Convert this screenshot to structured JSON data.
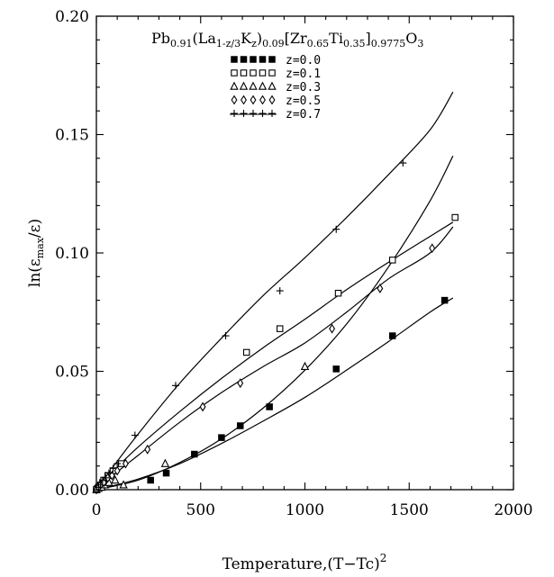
{
  "chart_data": {
    "type": "scatter",
    "title": "Pb0.91(La1-z/3Kz)0.09[Zr0.65Ti0.35]0.9775O3",
    "title_parts": [
      {
        "t": "Pb",
        "s": "n"
      },
      {
        "t": "0.91",
        "s": "sub"
      },
      {
        "t": "(La",
        "s": "n"
      },
      {
        "t": "1-z/3",
        "s": "sub"
      },
      {
        "t": "K",
        "s": "n"
      },
      {
        "t": "z",
        "s": "sub"
      },
      {
        "t": ")",
        "s": "n"
      },
      {
        "t": "0.09",
        "s": "sub"
      },
      {
        "t": "[Zr",
        "s": "n"
      },
      {
        "t": "0.65",
        "s": "sub"
      },
      {
        "t": "Ti",
        "s": "n"
      },
      {
        "t": "0.35",
        "s": "sub"
      },
      {
        "t": "]",
        "s": "n"
      },
      {
        "t": "0.9775",
        "s": "sub"
      },
      {
        "t": "O",
        "s": "n"
      },
      {
        "t": "3",
        "s": "sub"
      }
    ],
    "xlabel": "Temperature,(T−Tc)",
    "xlabel_sup": "2",
    "ylabel_prefix": "ln(ε",
    "ylabel_sub": "max",
    "ylabel_suffix": "/ε)",
    "xlim": [
      0,
      2000
    ],
    "ylim": [
      0,
      0.2
    ],
    "xticks": [
      0,
      500,
      1000,
      1500,
      2000
    ],
    "xtick_labels": [
      "0",
      "500",
      "1000",
      "1500",
      "2000"
    ],
    "yticks": [
      0,
      0.05,
      0.1,
      0.15,
      0.2
    ],
    "ytick_labels": [
      "0.00",
      "0.05",
      "0.10",
      "0.15",
      "0.20"
    ],
    "grid": false,
    "legend_position": "top-right",
    "series": [
      {
        "name": "z=0.0",
        "marker": "filled-square",
        "points": [
          [
            0,
            0
          ],
          [
            5,
            0.0005
          ],
          [
            10,
            0.001
          ],
          [
            20,
            0.002
          ],
          [
            30,
            0.003
          ],
          [
            45,
            0.004
          ],
          [
            260,
            0.004
          ],
          [
            335,
            0.007
          ],
          [
            470,
            0.015
          ],
          [
            600,
            0.022
          ],
          [
            690,
            0.027
          ],
          [
            830,
            0.035
          ],
          [
            1150,
            0.051
          ],
          [
            1420,
            0.065
          ],
          [
            1670,
            0.08
          ]
        ],
        "curve": [
          [
            0,
            0
          ],
          [
            200,
            0.0045
          ],
          [
            400,
            0.011
          ],
          [
            600,
            0.0195
          ],
          [
            800,
            0.029
          ],
          [
            1000,
            0.039
          ],
          [
            1200,
            0.0505
          ],
          [
            1400,
            0.0625
          ],
          [
            1600,
            0.075
          ],
          [
            1710,
            0.081
          ]
        ]
      },
      {
        "name": "z=0.1",
        "marker": "open-square",
        "points": [
          [
            0,
            0
          ],
          [
            10,
            0.001
          ],
          [
            20,
            0.002
          ],
          [
            35,
            0.004
          ],
          [
            55,
            0.006
          ],
          [
            80,
            0.008
          ],
          [
            120,
            0.011
          ],
          [
            720,
            0.058
          ],
          [
            880,
            0.068
          ],
          [
            1160,
            0.083
          ],
          [
            1420,
            0.097
          ],
          [
            1720,
            0.115
          ]
        ],
        "curve": [
          [
            0,
            0
          ],
          [
            100,
            0.0095
          ],
          [
            200,
            0.018
          ],
          [
            400,
            0.033
          ],
          [
            600,
            0.047
          ],
          [
            800,
            0.06
          ],
          [
            1000,
            0.072
          ],
          [
            1200,
            0.0845
          ],
          [
            1400,
            0.096
          ],
          [
            1600,
            0.107
          ],
          [
            1710,
            0.113
          ]
        ]
      },
      {
        "name": "z=0.3",
        "marker": "open-triangle",
        "points": [
          [
            0,
            0
          ],
          [
            10,
            0.0005
          ],
          [
            25,
            0.001
          ],
          [
            40,
            0.002
          ],
          [
            60,
            0.003
          ],
          [
            90,
            0.004
          ],
          [
            130,
            0.002
          ],
          [
            330,
            0.011
          ],
          [
            1000,
            0.052
          ]
        ],
        "curve": [
          [
            0,
            0
          ],
          [
            200,
            0.004
          ],
          [
            400,
            0.0115
          ],
          [
            600,
            0.0215
          ],
          [
            800,
            0.0345
          ],
          [
            1000,
            0.0505
          ],
          [
            1200,
            0.07
          ],
          [
            1400,
            0.094
          ],
          [
            1600,
            0.122
          ],
          [
            1710,
            0.141
          ]
        ]
      },
      {
        "name": "z=0.5",
        "marker": "open-diamond",
        "points": [
          [
            0,
            0
          ],
          [
            10,
            0.001
          ],
          [
            20,
            0.002
          ],
          [
            35,
            0.003
          ],
          [
            55,
            0.005
          ],
          [
            75,
            0.006
          ],
          [
            100,
            0.008
          ],
          [
            140,
            0.011
          ],
          [
            245,
            0.017
          ],
          [
            510,
            0.035
          ],
          [
            690,
            0.045
          ],
          [
            1130,
            0.068
          ],
          [
            1360,
            0.085
          ],
          [
            1610,
            0.102
          ]
        ],
        "curve": [
          [
            0,
            0
          ],
          [
            100,
            0.0075
          ],
          [
            200,
            0.0145
          ],
          [
            400,
            0.0285
          ],
          [
            600,
            0.041
          ],
          [
            800,
            0.052
          ],
          [
            1000,
            0.062
          ],
          [
            1200,
            0.075
          ],
          [
            1400,
            0.089
          ],
          [
            1600,
            0.1
          ],
          [
            1710,
            0.111
          ]
        ]
      },
      {
        "name": "z=0.7",
        "marker": "plus",
        "points": [
          [
            0,
            0
          ],
          [
            10,
            0.001
          ],
          [
            20,
            0.002
          ],
          [
            30,
            0.004
          ],
          [
            45,
            0.005
          ],
          [
            60,
            0.007
          ],
          [
            80,
            0.009
          ],
          [
            100,
            0.011
          ],
          [
            185,
            0.023
          ],
          [
            380,
            0.044
          ],
          [
            620,
            0.065
          ],
          [
            880,
            0.084
          ],
          [
            1150,
            0.11
          ],
          [
            1470,
            0.138
          ]
        ],
        "curve": [
          [
            0,
            0
          ],
          [
            100,
            0.012
          ],
          [
            200,
            0.0235
          ],
          [
            400,
            0.045
          ],
          [
            600,
            0.064
          ],
          [
            800,
            0.082
          ],
          [
            1000,
            0.098
          ],
          [
            1200,
            0.115
          ],
          [
            1400,
            0.133
          ],
          [
            1600,
            0.152
          ],
          [
            1710,
            0.168
          ]
        ]
      }
    ]
  }
}
